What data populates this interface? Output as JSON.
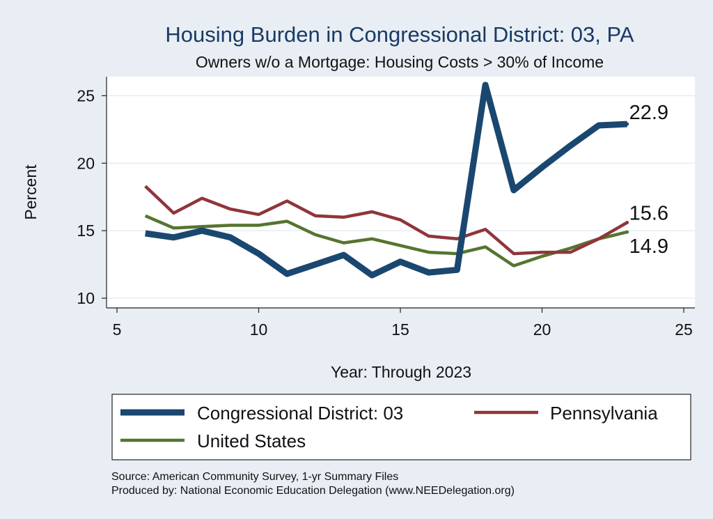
{
  "chart_data": {
    "type": "line",
    "title": "Housing Burden in Congressional District:  03, PA",
    "subtitle": "Owners w/o a Mortgage: Housing Costs > 30% of Income",
    "xlabel": "Year: Through 2023",
    "ylabel": "Percent",
    "xlim": [
      5,
      25
    ],
    "ylim": [
      10,
      26
    ],
    "xticks": [
      5,
      10,
      15,
      20,
      25
    ],
    "yticks": [
      10,
      15,
      20,
      25
    ],
    "grid": true,
    "legend_position": "bottom",
    "series": [
      {
        "name": "Congressional District:  03",
        "color": "#1a476f",
        "x": [
          6,
          7,
          8,
          9,
          10,
          11,
          12,
          13,
          14,
          15,
          16,
          17,
          18,
          19,
          20,
          21,
          22,
          23
        ],
        "values": [
          14.8,
          14.5,
          15.0,
          14.5,
          13.3,
          11.8,
          12.5,
          13.2,
          11.7,
          12.7,
          11.9,
          12.1,
          25.8,
          18.0,
          19.7,
          21.3,
          22.8,
          22.9
        ],
        "end_label": "22.9"
      },
      {
        "name": "Pennsylvania",
        "color": "#90353b",
        "x": [
          6,
          7,
          8,
          9,
          10,
          11,
          12,
          13,
          14,
          15,
          16,
          17,
          18,
          19,
          20,
          21,
          22,
          23
        ],
        "values": [
          18.3,
          16.3,
          17.4,
          16.6,
          16.2,
          17.2,
          16.1,
          16.0,
          16.4,
          15.8,
          14.6,
          14.4,
          15.1,
          13.3,
          13.4,
          13.4,
          14.4,
          15.6
        ],
        "end_label": "15.6"
      },
      {
        "name": "United States",
        "color": "#55752f",
        "x": [
          6,
          7,
          8,
          9,
          10,
          11,
          12,
          13,
          14,
          15,
          16,
          17,
          18,
          19,
          20,
          21,
          22,
          23
        ],
        "values": [
          16.1,
          15.2,
          15.3,
          15.4,
          15.4,
          15.7,
          14.7,
          14.1,
          14.4,
          13.9,
          13.4,
          13.3,
          13.8,
          12.4,
          13.1,
          13.7,
          14.4,
          14.9
        ],
        "end_label": "14.9"
      }
    ]
  },
  "source_lines": [
    "Source: American Community Survey, 1-yr Summary Files",
    "Produced by: National Economic Education Delegation (www.NEEDelegation.org)"
  ]
}
